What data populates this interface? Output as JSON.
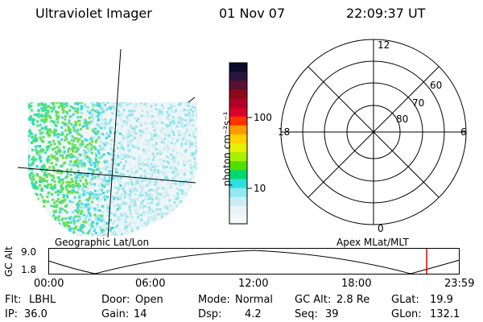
{
  "header": {
    "instrument": "Ultraviolet Imager",
    "date": "01 Nov 07",
    "time": "22:09:37 UT"
  },
  "geo_panel": {
    "label": "Geographic Lat/Lon"
  },
  "colorbar": {
    "unit": "photon cm⁻²s⁻¹",
    "ticks": [
      "100",
      "10"
    ],
    "colors": [
      "#0b0b2a",
      "#2a1440",
      "#5a1030",
      "#8a0a1a",
      "#b0002a",
      "#d8002a",
      "#ff3300",
      "#ff9900",
      "#ffd000",
      "#e8f000",
      "#a8f000",
      "#50e000",
      "#00d870",
      "#30e0e0",
      "#90e8f0",
      "#c8eef4",
      "#e8f4f8",
      "#f4f8fa"
    ]
  },
  "polar_panel": {
    "label": "Apex MLat/MLT",
    "mlt_labels": [
      "12",
      "18",
      "6",
      "0"
    ],
    "mlat_labels": [
      "60",
      "70",
      "80"
    ]
  },
  "timeline": {
    "ylabel": "GC Alt",
    "y_ticks": [
      "9.0",
      "1.8"
    ],
    "x_ticks": [
      "00:00",
      "06:00",
      "12:00",
      "18:00",
      "23:59"
    ]
  },
  "info": {
    "row1": [
      {
        "label": "Flt:",
        "value": "LBHL"
      },
      {
        "label": "Door:",
        "value": "Open"
      },
      {
        "label": "Mode:",
        "value": "Normal"
      },
      {
        "label": "GC Alt:",
        "value": "2.8 Re"
      },
      {
        "label": "GLat:",
        "value": "19.9"
      }
    ],
    "row2": [
      {
        "label": "IP:",
        "value": "36.0"
      },
      {
        "label": "Gain:",
        "value": "14"
      },
      {
        "label": "Dsp:",
        "value": "4.2"
      },
      {
        "label": "Seq:",
        "value": "39"
      },
      {
        "label": "GLon:",
        "value": "132.1"
      }
    ]
  }
}
